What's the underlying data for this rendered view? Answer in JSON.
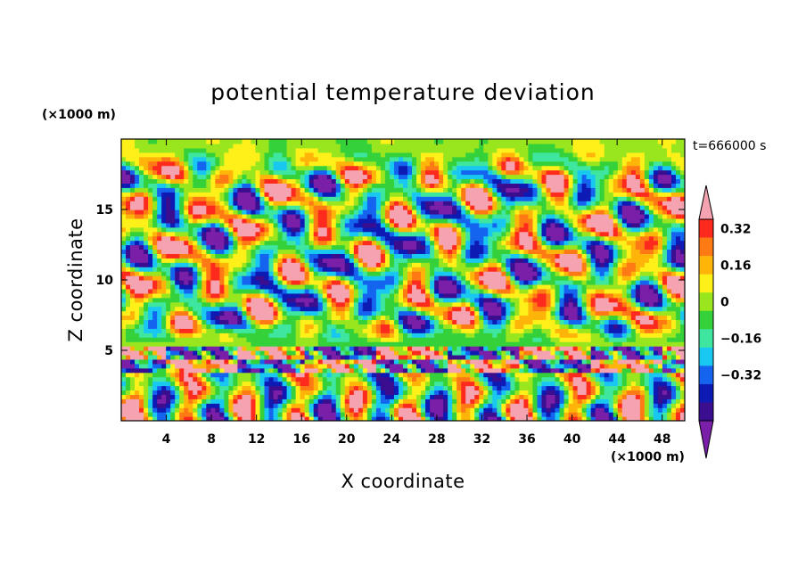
{
  "chart_data": {
    "type": "heatmap",
    "title": "potential temperature deviation",
    "xlabel": "X coordinate",
    "ylabel": "Z coordinate",
    "x_unit": "(×1000 m)",
    "y_unit": "(×1000 m)",
    "time_label": "t=666000 s",
    "xlim": [
      0,
      50
    ],
    "ylim": [
      0,
      20
    ],
    "x_ticks": [
      4,
      8,
      12,
      16,
      20,
      24,
      28,
      32,
      36,
      40,
      44,
      48
    ],
    "x_tick_labels": [
      "4",
      "8",
      "12",
      "16",
      "20",
      "24",
      "28",
      "32",
      "36",
      "40",
      "44",
      "48"
    ],
    "y_ticks": [
      5,
      10,
      15
    ],
    "y_tick_labels": [
      "5",
      "10",
      "15"
    ],
    "colorbar": {
      "levels": [
        -0.48,
        -0.4,
        -0.32,
        -0.24,
        -0.16,
        -0.08,
        0,
        0.08,
        0.16,
        0.24,
        0.32,
        0.4
      ],
      "tick_values": [
        0.32,
        0.16,
        0,
        -0.16,
        -0.32
      ],
      "tick_labels": [
        "0.32",
        "0.16",
        "0",
        "−0.16",
        "−0.32"
      ],
      "colors": [
        "#7a1fa8",
        "#3a0e8f",
        "#0e1ab4",
        "#1464f0",
        "#19c8f0",
        "#3ee6a0",
        "#35d13a",
        "#9ae61e",
        "#fff01a",
        "#ffb40a",
        "#ff7a14",
        "#ff2a1e",
        "#f5a3b0"
      ]
    }
  }
}
